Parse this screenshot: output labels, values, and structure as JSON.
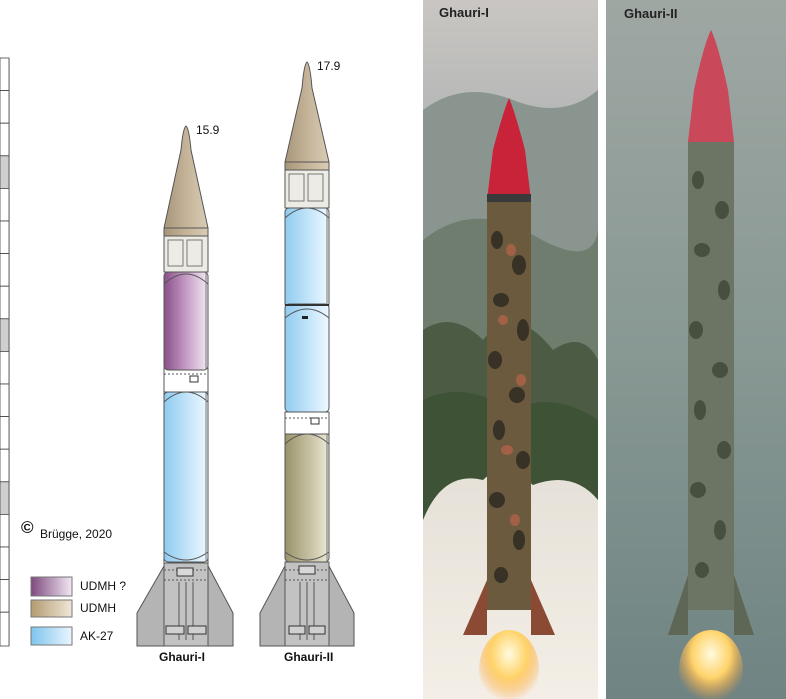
{
  "diagram": {
    "rockets": [
      {
        "name": "Ghauri-I",
        "length_label": "15.9"
      },
      {
        "name": "Ghauri-II",
        "length_label": "17.9"
      }
    ],
    "copyright": {
      "symbol": "©",
      "text": "Brügge, 2020"
    },
    "legend": [
      {
        "label": "UDMH ?",
        "color": "#a86aa8"
      },
      {
        "label": "UDMH",
        "color": "#b79f78"
      },
      {
        "label": "AK-27",
        "color": "#8fcbf0"
      }
    ]
  },
  "photos": [
    {
      "caption": "Ghauri-I"
    },
    {
      "caption": "Ghauri-II"
    }
  ],
  "colors": {
    "nose": "#b9a68a",
    "fin": "#b4b4b4",
    "oxidizer": "#8fcbf0",
    "fuel_q": "#a86aa8",
    "fuel": "#a9a37a"
  }
}
